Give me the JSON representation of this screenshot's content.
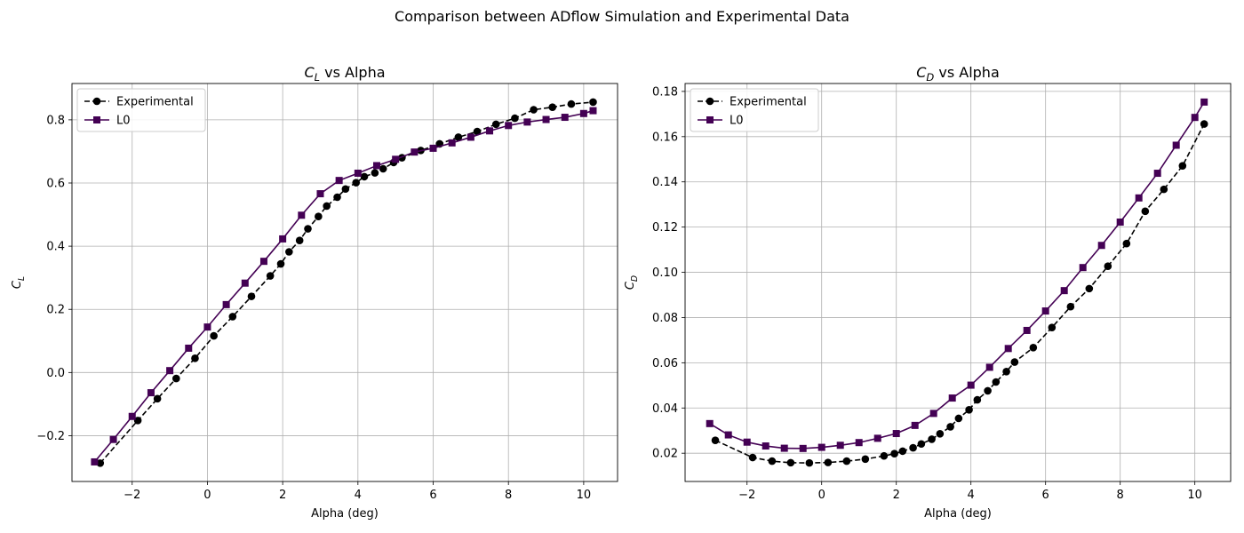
{
  "figure": {
    "title": "Comparison between ADflow Simulation and Experimental Data"
  },
  "colors": {
    "experimental": "#000000",
    "l0": "#440154",
    "grid": "#b0b0b0",
    "legend_border": "#cccccc"
  },
  "chart_data": [
    {
      "type": "line",
      "title_main": "C",
      "title_sub": "L",
      "title_rest": " vs Alpha",
      "xlabel": "Alpha (deg)",
      "ylabel_main": "C",
      "ylabel_sub": "L",
      "xlim": [
        -3.6,
        10.9
      ],
      "ylim": [
        -0.345,
        0.915
      ],
      "xticks": [
        -2,
        0,
        2,
        4,
        6,
        8,
        10
      ],
      "xtick_labels": [
        "−2",
        "0",
        "2",
        "4",
        "6",
        "8",
        "10"
      ],
      "yticks": [
        -0.2,
        0.0,
        0.2,
        0.4,
        0.6,
        0.8
      ],
      "ytick_labels": [
        "−0.2",
        "0.0",
        "0.2",
        "0.4",
        "0.6",
        "0.8"
      ],
      "grid": true,
      "legend_position": "top-left",
      "series": [
        {
          "name": "Experimental",
          "style": "dashed",
          "marker": "circle",
          "x": [
            -2.85,
            -1.85,
            -1.33,
            -0.83,
            -0.33,
            0.17,
            0.67,
            1.17,
            1.67,
            1.95,
            2.17,
            2.45,
            2.67,
            2.95,
            3.17,
            3.45,
            3.67,
            3.95,
            4.17,
            4.45,
            4.67,
            4.95,
            5.17,
            5.67,
            6.17,
            6.67,
            7.17,
            7.67,
            8.17,
            8.67,
            9.17,
            9.67,
            10.25
          ],
          "y": [
            -0.287,
            -0.152,
            -0.083,
            -0.019,
            0.045,
            0.116,
            0.177,
            0.241,
            0.306,
            0.344,
            0.382,
            0.418,
            0.455,
            0.494,
            0.527,
            0.555,
            0.581,
            0.601,
            0.62,
            0.632,
            0.645,
            0.665,
            0.68,
            0.703,
            0.724,
            0.745,
            0.763,
            0.786,
            0.805,
            0.832,
            0.84,
            0.85,
            0.856
          ]
        },
        {
          "name": "L0",
          "style": "solid",
          "marker": "square",
          "x": [
            -3.0,
            -2.5,
            -2.0,
            -1.5,
            -1.0,
            -0.5,
            0.0,
            0.5,
            1.0,
            1.5,
            2.0,
            2.5,
            3.0,
            3.5,
            4.0,
            4.5,
            5.0,
            5.5,
            6.0,
            6.5,
            7.0,
            7.5,
            8.0,
            8.5,
            9.0,
            9.5,
            10.0,
            10.25
          ],
          "y": [
            -0.283,
            -0.212,
            -0.139,
            -0.064,
            0.006,
            0.077,
            0.144,
            0.215,
            0.283,
            0.352,
            0.423,
            0.498,
            0.566,
            0.608,
            0.631,
            0.655,
            0.675,
            0.698,
            0.71,
            0.727,
            0.745,
            0.765,
            0.782,
            0.793,
            0.801,
            0.808,
            0.82,
            0.829
          ]
        }
      ]
    },
    {
      "type": "line",
      "title_main": "C",
      "title_sub": "D",
      "title_rest": " vs Alpha",
      "xlabel": "Alpha (deg)",
      "ylabel_main": "C",
      "ylabel_sub": "D",
      "xlim": [
        -3.66,
        10.96
      ],
      "ylim": [
        0.0075,
        0.1835
      ],
      "xticks": [
        -2,
        0,
        2,
        4,
        6,
        8,
        10
      ],
      "xtick_labels": [
        "−2",
        "0",
        "2",
        "4",
        "6",
        "8",
        "10"
      ],
      "yticks": [
        0.02,
        0.04,
        0.06,
        0.08,
        0.1,
        0.12,
        0.14,
        0.16,
        0.18
      ],
      "ytick_labels": [
        "0.02",
        "0.04",
        "0.06",
        "0.08",
        "0.10",
        "0.12",
        "0.14",
        "0.16",
        "0.18"
      ],
      "grid": true,
      "legend_position": "top-left",
      "series": [
        {
          "name": "Experimental",
          "style": "dashed",
          "marker": "circle",
          "x": [
            -2.85,
            -1.85,
            -1.33,
            -0.83,
            -0.33,
            0.17,
            0.67,
            1.17,
            1.67,
            1.95,
            2.17,
            2.45,
            2.67,
            2.95,
            3.17,
            3.45,
            3.67,
            3.95,
            4.17,
            4.45,
            4.67,
            4.95,
            5.17,
            5.67,
            6.17,
            6.67,
            7.17,
            7.67,
            8.17,
            8.67,
            9.17,
            9.67,
            10.25
          ],
          "y": [
            0.0257,
            0.0181,
            0.0165,
            0.0158,
            0.0157,
            0.0159,
            0.0165,
            0.0174,
            0.0188,
            0.0198,
            0.0209,
            0.0224,
            0.0241,
            0.0262,
            0.0286,
            0.0317,
            0.0354,
            0.0392,
            0.0436,
            0.0476,
            0.0515,
            0.0561,
            0.0603,
            0.0667,
            0.0756,
            0.0848,
            0.0928,
            0.1027,
            0.1127,
            0.127,
            0.1367,
            0.1471,
            0.1656
          ]
        },
        {
          "name": "L0",
          "style": "solid",
          "marker": "square",
          "x": [
            -3.0,
            -2.5,
            -2.0,
            -1.5,
            -1.0,
            -0.5,
            0.0,
            0.5,
            1.0,
            1.5,
            2.0,
            2.5,
            3.0,
            3.5,
            4.0,
            4.5,
            5.0,
            5.5,
            6.0,
            6.5,
            7.0,
            7.5,
            8.0,
            8.5,
            9.0,
            9.5,
            10.0,
            10.25
          ],
          "y": [
            0.0331,
            0.0281,
            0.0249,
            0.0232,
            0.0222,
            0.0221,
            0.0226,
            0.0235,
            0.0247,
            0.0266,
            0.0287,
            0.0323,
            0.0376,
            0.0444,
            0.0501,
            0.058,
            0.0663,
            0.0743,
            0.0829,
            0.0919,
            0.1021,
            0.1119,
            0.1222,
            0.1329,
            0.1438,
            0.1562,
            0.1685,
            0.1753
          ]
        }
      ]
    }
  ]
}
